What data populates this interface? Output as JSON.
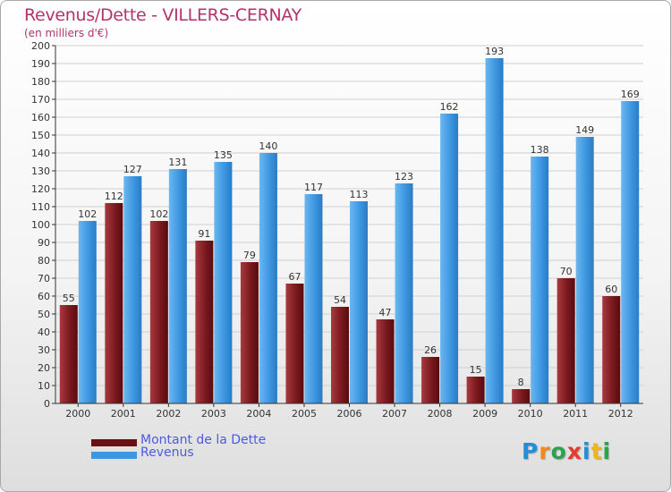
{
  "chart_data": {
    "type": "bar",
    "title": "Revenus/Dette - VILLERS-CERNAY",
    "subtitle": "(en milliers d'€)",
    "xlabel": "",
    "ylabel": "",
    "ylim": [
      0,
      200
    ],
    "yticks": [
      0,
      10,
      20,
      30,
      40,
      50,
      60,
      70,
      80,
      90,
      100,
      110,
      120,
      130,
      140,
      150,
      160,
      170,
      180,
      190,
      200
    ],
    "grid": true,
    "categories": [
      "2000",
      "2001",
      "2002",
      "2003",
      "2004",
      "2005",
      "2006",
      "2007",
      "2008",
      "2009",
      "2010",
      "2011",
      "2012"
    ],
    "series": [
      {
        "name": "Montant de la Dette",
        "color": "#7a1a1f",
        "values": [
          55,
          112,
          102,
          91,
          79,
          67,
          54,
          47,
          26,
          15,
          8,
          70,
          60
        ]
      },
      {
        "name": "Revenus",
        "color": "#3d97e0",
        "values": [
          102,
          127,
          131,
          135,
          140,
          117,
          113,
          123,
          162,
          193,
          138,
          149,
          169
        ]
      }
    ]
  },
  "legend": {
    "items": [
      {
        "label": "Montant de la Dette",
        "color": "#6b0f14"
      },
      {
        "label": "Revenus",
        "color": "#3d97e0"
      }
    ],
    "position": "bottom-left"
  },
  "logo": {
    "letters": [
      {
        "char": "P",
        "color": "#1f8fd6"
      },
      {
        "char": "r",
        "color": "#f08a1a"
      },
      {
        "char": "o",
        "color": "#2aa44a"
      },
      {
        "char": "x",
        "color": "#e63a2a"
      },
      {
        "char": "i",
        "color": "#1f8fd6"
      },
      {
        "char": "t",
        "color": "#f0b71a"
      },
      {
        "char": "i",
        "color": "#2aa44a"
      }
    ]
  }
}
